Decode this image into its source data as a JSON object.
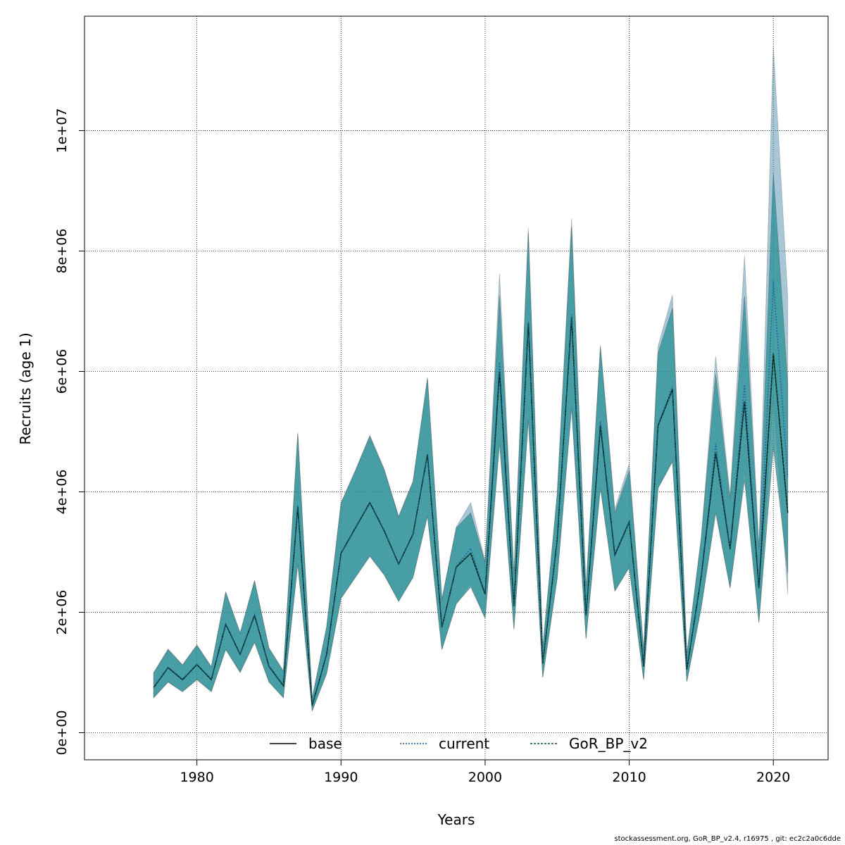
{
  "chart_data": {
    "type": "line",
    "xlabel": "Years",
    "ylabel": "Recruits (age 1)",
    "xlim": [
      1972.2,
      2023.8
    ],
    "ylim": [
      -450000,
      11900000
    ],
    "x_ticks": [
      1980,
      1990,
      2000,
      2010,
      2020
    ],
    "y_ticks": [
      0,
      2000000,
      4000000,
      6000000,
      8000000,
      10000000
    ],
    "y_tick_labels": [
      "0e+00",
      "2e+06",
      "4e+06",
      "6e+06",
      "8e+06",
      "1e+07"
    ],
    "grid": true,
    "legend": "bottom-center",
    "years": [
      1977,
      1978,
      1979,
      1980,
      1981,
      1982,
      1983,
      1984,
      1985,
      1986,
      1987,
      1988,
      1989,
      1990,
      1991,
      1992,
      1993,
      1994,
      1995,
      1996,
      1997,
      1998,
      1999,
      2000,
      2001,
      2002,
      2003,
      2004,
      2005,
      2006,
      2007,
      2008,
      2009,
      2010,
      2011,
      2012,
      2013,
      2014,
      2015,
      2016,
      2017,
      2018,
      2019,
      2020,
      2021
    ],
    "series": [
      {
        "name": "base",
        "color": "#000000",
        "dash": "solid",
        "values": [
          750000,
          1080000,
          880000,
          1130000,
          880000,
          1800000,
          1300000,
          1950000,
          1100000,
          780000,
          3750000,
          450000,
          1300000,
          2980000,
          3400000,
          3820000,
          3350000,
          2800000,
          3300000,
          4620000,
          1750000,
          2750000,
          2980000,
          2300000,
          6000000,
          2100000,
          6800000,
          1150000,
          3200000,
          6900000,
          1950000,
          5100000,
          2950000,
          3500000,
          1100000,
          5100000,
          5700000,
          1050000,
          2600000,
          4650000,
          3050000,
          5500000,
          2400000,
          6300000,
          3650000
        ],
        "lower": [
          580000,
          840000,
          680000,
          880000,
          680000,
          1380000,
          1000000,
          1500000,
          840000,
          580000,
          2800000,
          360000,
          980000,
          2230000,
          2580000,
          2930000,
          2620000,
          2180000,
          2580000,
          3600000,
          1380000,
          2140000,
          2420000,
          1900000,
          4800000,
          1720000,
          5200000,
          920000,
          2560000,
          5400000,
          1560000,
          4060000,
          2350000,
          2740000,
          880000,
          4060000,
          4500000,
          850000,
          2080000,
          3650000,
          2400000,
          4200000,
          1830000,
          4750000,
          2650000
        ],
        "upper": [
          990000,
          1380000,
          1120000,
          1450000,
          1090000,
          2330000,
          1650000,
          2520000,
          1400000,
          1020000,
          4960000,
          570000,
          1750000,
          3810000,
          4350000,
          4920000,
          4360000,
          3580000,
          4170000,
          5880000,
          2210000,
          3400000,
          3650000,
          2830000,
          7250000,
          2620000,
          8300000,
          1400000,
          3950000,
          8400000,
          2390000,
          6400000,
          3650000,
          4350000,
          1370000,
          6300000,
          7050000,
          1300000,
          3230000,
          5950000,
          3880000,
          7250000,
          3050000,
          9300000,
          5800000
        ]
      },
      {
        "name": "current",
        "color": "#1f5fa6",
        "dash": "dotted",
        "values": [
          760000,
          1090000,
          890000,
          1140000,
          890000,
          1810000,
          1310000,
          1960000,
          1110000,
          790000,
          3770000,
          460000,
          1310000,
          2990000,
          3410000,
          3830000,
          3360000,
          2810000,
          3310000,
          4630000,
          1760000,
          2760000,
          3060000,
          2310000,
          6150000,
          2110000,
          6820000,
          1160000,
          3210000,
          6950000,
          1960000,
          5170000,
          2980000,
          3510000,
          1110000,
          5120000,
          5750000,
          1060000,
          2610000,
          4800000,
          3070000,
          5780000,
          2420000,
          7500000,
          4250000
        ],
        "lower": [
          590000,
          850000,
          690000,
          890000,
          690000,
          1390000,
          1010000,
          1510000,
          850000,
          590000,
          2810000,
          370000,
          990000,
          2240000,
          2590000,
          2940000,
          2630000,
          2190000,
          2590000,
          3610000,
          1390000,
          2150000,
          2480000,
          1910000,
          4900000,
          1730000,
          5220000,
          930000,
          2570000,
          5420000,
          1570000,
          4100000,
          2370000,
          2750000,
          890000,
          4070000,
          4520000,
          860000,
          2090000,
          3730000,
          2410000,
          4380000,
          1840000,
          5600000,
          2300000
        ],
        "upper": [
          1000000,
          1390000,
          1130000,
          1460000,
          1100000,
          2340000,
          1660000,
          2530000,
          1410000,
          1030000,
          4980000,
          580000,
          1760000,
          3820000,
          4360000,
          4940000,
          4380000,
          3600000,
          4180000,
          5900000,
          2220000,
          3420000,
          3820000,
          2850000,
          7620000,
          2640000,
          8380000,
          1420000,
          3970000,
          8540000,
          2410000,
          6440000,
          3720000,
          4470000,
          1380000,
          6420000,
          7270000,
          1320000,
          3260000,
          6250000,
          3940000,
          7920000,
          3080000,
          11400000,
          7250000
        ]
      },
      {
        "name": "GoR_BP_v2",
        "color": "#0b4f45",
        "dash": "dashed",
        "values": [
          750000,
          1080000,
          880000,
          1130000,
          880000,
          1800000,
          1300000,
          1950000,
          1100000,
          780000,
          3750000,
          450000,
          1300000,
          2980000,
          3400000,
          3820000,
          3350000,
          2800000,
          3300000,
          4620000,
          1750000,
          2750000,
          2980000,
          2300000,
          6000000,
          2100000,
          6800000,
          1150000,
          3200000,
          6900000,
          1950000,
          5100000,
          2950000,
          3500000,
          1100000,
          5100000,
          5700000,
          1050000,
          2600000,
          4650000,
          3050000,
          5500000,
          2400000,
          6300000,
          3650000
        ],
        "lower": [
          580000,
          840000,
          680000,
          880000,
          680000,
          1380000,
          1000000,
          1500000,
          840000,
          580000,
          2800000,
          360000,
          980000,
          2230000,
          2580000,
          2930000,
          2620000,
          2180000,
          2580000,
          3600000,
          1380000,
          2140000,
          2420000,
          1900000,
          4800000,
          1720000,
          5200000,
          920000,
          2560000,
          5400000,
          1560000,
          4060000,
          2350000,
          2740000,
          880000,
          4060000,
          4500000,
          850000,
          2080000,
          3650000,
          2400000,
          4200000,
          1830000,
          4750000,
          2650000
        ],
        "upper": [
          990000,
          1380000,
          1120000,
          1450000,
          1090000,
          2330000,
          1650000,
          2520000,
          1400000,
          1020000,
          4960000,
          570000,
          1750000,
          3810000,
          4350000,
          4920000,
          4360000,
          3580000,
          4170000,
          5880000,
          2210000,
          3400000,
          3650000,
          2830000,
          7250000,
          2620000,
          8300000,
          1400000,
          3950000,
          8400000,
          2390000,
          6400000,
          3650000,
          4350000,
          1370000,
          6300000,
          7050000,
          1300000,
          3230000,
          5950000,
          3880000,
          7250000,
          3050000,
          9300000,
          5800000
        ]
      }
    ]
  },
  "footer": {
    "text": "stockassessment.org, GoR_BP_v2.4, r16975 , git: ec2c2a0c6dde"
  }
}
